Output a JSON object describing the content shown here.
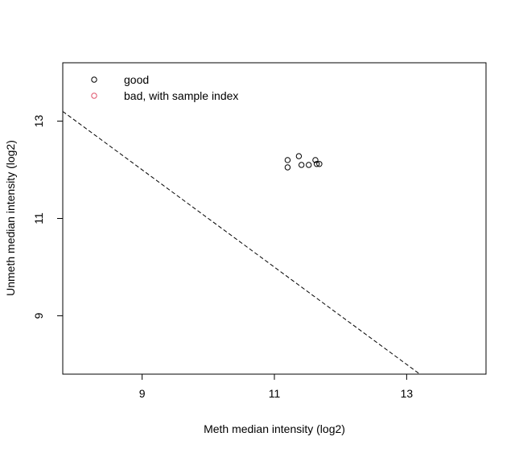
{
  "chart_data": {
    "type": "scatter",
    "title": "",
    "xlabel": "Meth median intensity (log2)",
    "ylabel": "Unmeth median intensity (log2)",
    "xlim": [
      7.8,
      14.2
    ],
    "ylim": [
      7.8,
      14.2
    ],
    "xticks": [
      "9",
      "11",
      "13"
    ],
    "yticks": [
      "9",
      "11",
      "13"
    ],
    "grid": false,
    "legend_position": "top-left",
    "legend": [
      {
        "label": "good",
        "color": "#000000"
      },
      {
        "label": "bad, with sample index",
        "color": "#DF536B"
      }
    ],
    "series": [
      {
        "name": "good",
        "color": "#000000",
        "points": [
          {
            "x": 11.2,
            "y": 12.2
          },
          {
            "x": 11.2,
            "y": 12.05
          },
          {
            "x": 11.37,
            "y": 12.28
          },
          {
            "x": 11.41,
            "y": 12.1
          },
          {
            "x": 11.52,
            "y": 12.1
          },
          {
            "x": 11.62,
            "y": 12.2
          },
          {
            "x": 11.64,
            "y": 12.12
          },
          {
            "x": 11.68,
            "y": 12.12
          }
        ]
      }
    ],
    "cutoff_line": {
      "x1": 7.8,
      "y1": 13.2,
      "x2": 13.2,
      "y2": 7.8,
      "style": "dashed"
    }
  }
}
